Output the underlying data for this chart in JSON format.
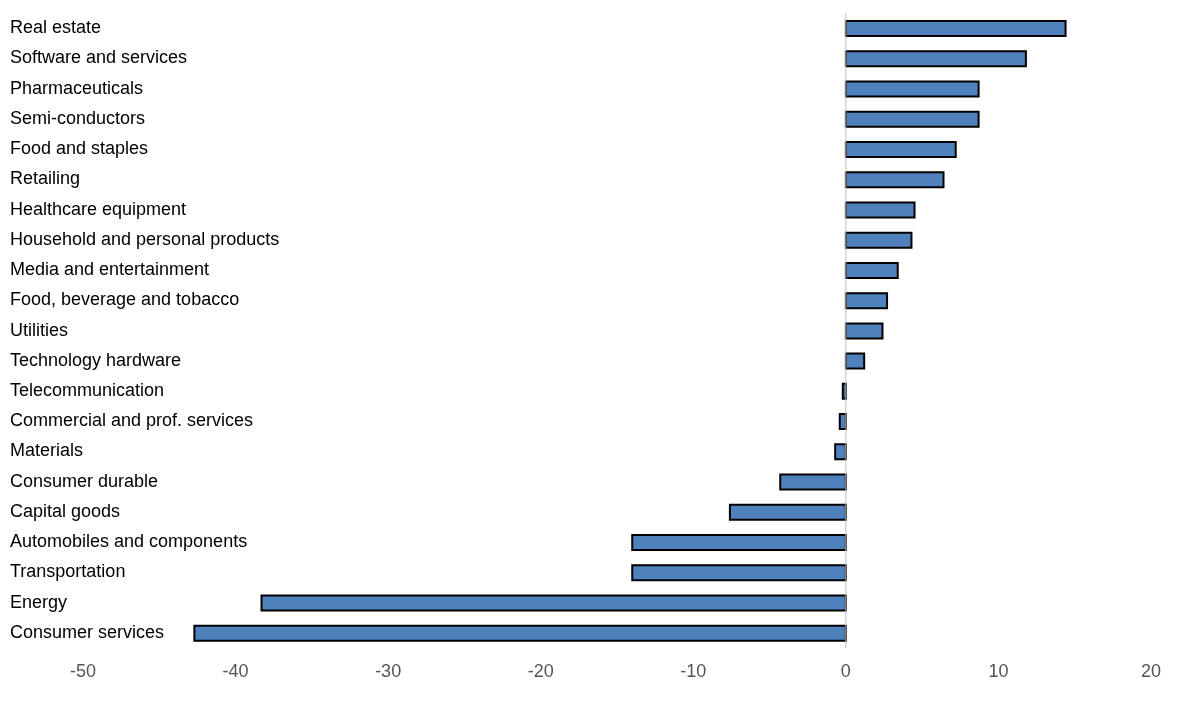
{
  "chart_data": {
    "type": "bar",
    "orientation": "horizontal",
    "categories": [
      "Real estate",
      "Software and services",
      "Pharmaceuticals",
      "Semi-conductors",
      "Food and staples",
      "Retailing",
      "Healthcare equipment",
      "Household and personal products",
      "Media and entertainment",
      "Food, beverage and tobacco",
      "Utilities",
      "Technology hardware",
      "Telecommunication",
      "Commercial and prof. services",
      "Materials",
      "Consumer durable",
      "Capital goods",
      "Automobiles and components",
      "Transportation",
      "Energy",
      "Consumer services"
    ],
    "values": [
      14.4,
      11.8,
      8.7,
      8.7,
      7.2,
      6.4,
      4.5,
      4.3,
      3.4,
      2.7,
      2.4,
      1.2,
      -0.2,
      -0.4,
      -0.7,
      -4.3,
      -7.6,
      -14.0,
      -14.0,
      -38.3,
      -42.7
    ],
    "color": "#4f81bd",
    "xlim": [
      -50,
      20
    ],
    "xticks": [
      -50,
      -40,
      -30,
      -20,
      -10,
      0,
      10,
      20
    ],
    "ref_lines": [
      {
        "axis": "x",
        "value": 0,
        "color": "#bfbfbf"
      }
    ]
  }
}
